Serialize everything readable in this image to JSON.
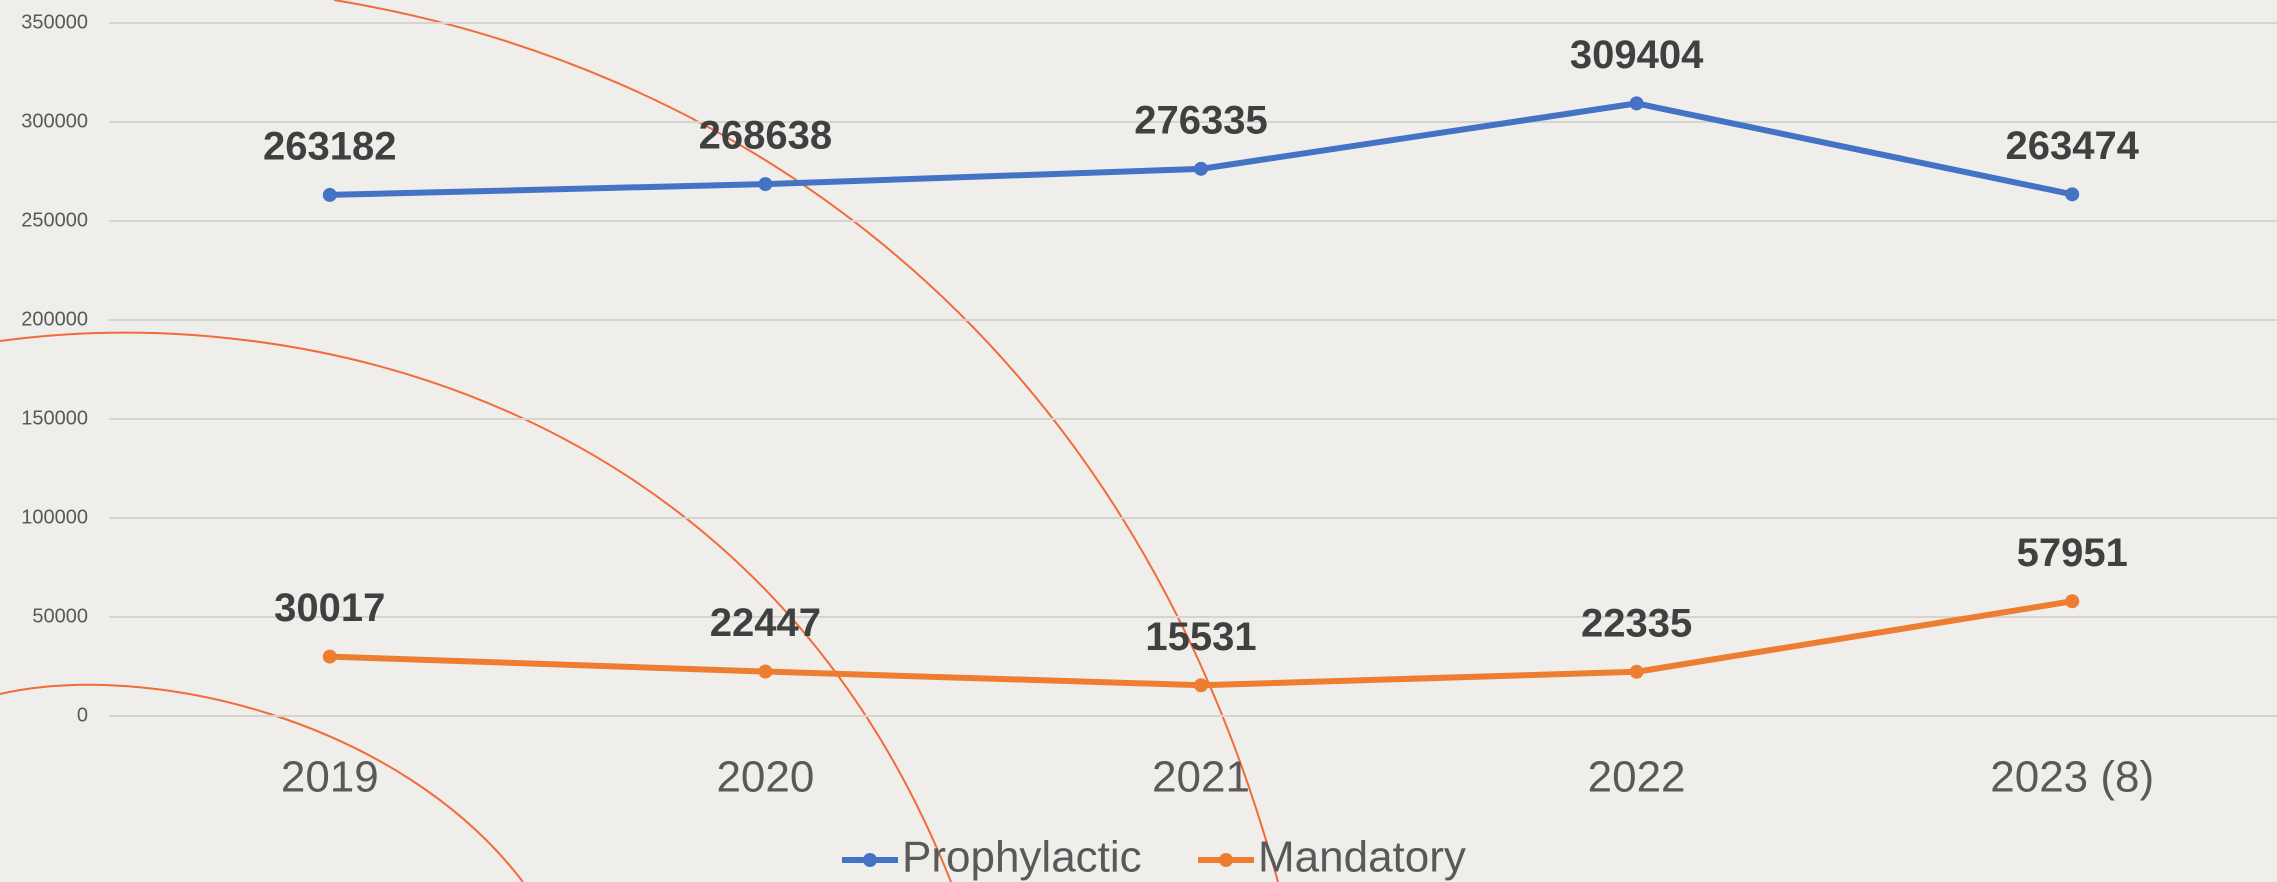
{
  "chart_data": {
    "type": "line",
    "categories": [
      "2019",
      "2020",
      "2021",
      "2022",
      "2023 (8)"
    ],
    "series": [
      {
        "name": "Prophylactic",
        "color": "#4472c4",
        "values": [
          263182,
          268638,
          276335,
          309404,
          263474
        ]
      },
      {
        "name": "Mandatory",
        "color": "#ed7d31",
        "values": [
          30017,
          22447,
          15531,
          22335,
          57951
        ]
      }
    ],
    "ylim": [
      0,
      350000
    ],
    "yticks": [
      0,
      50000,
      100000,
      150000,
      200000,
      250000,
      300000,
      350000
    ],
    "grid": true,
    "legend": "bottom"
  }
}
